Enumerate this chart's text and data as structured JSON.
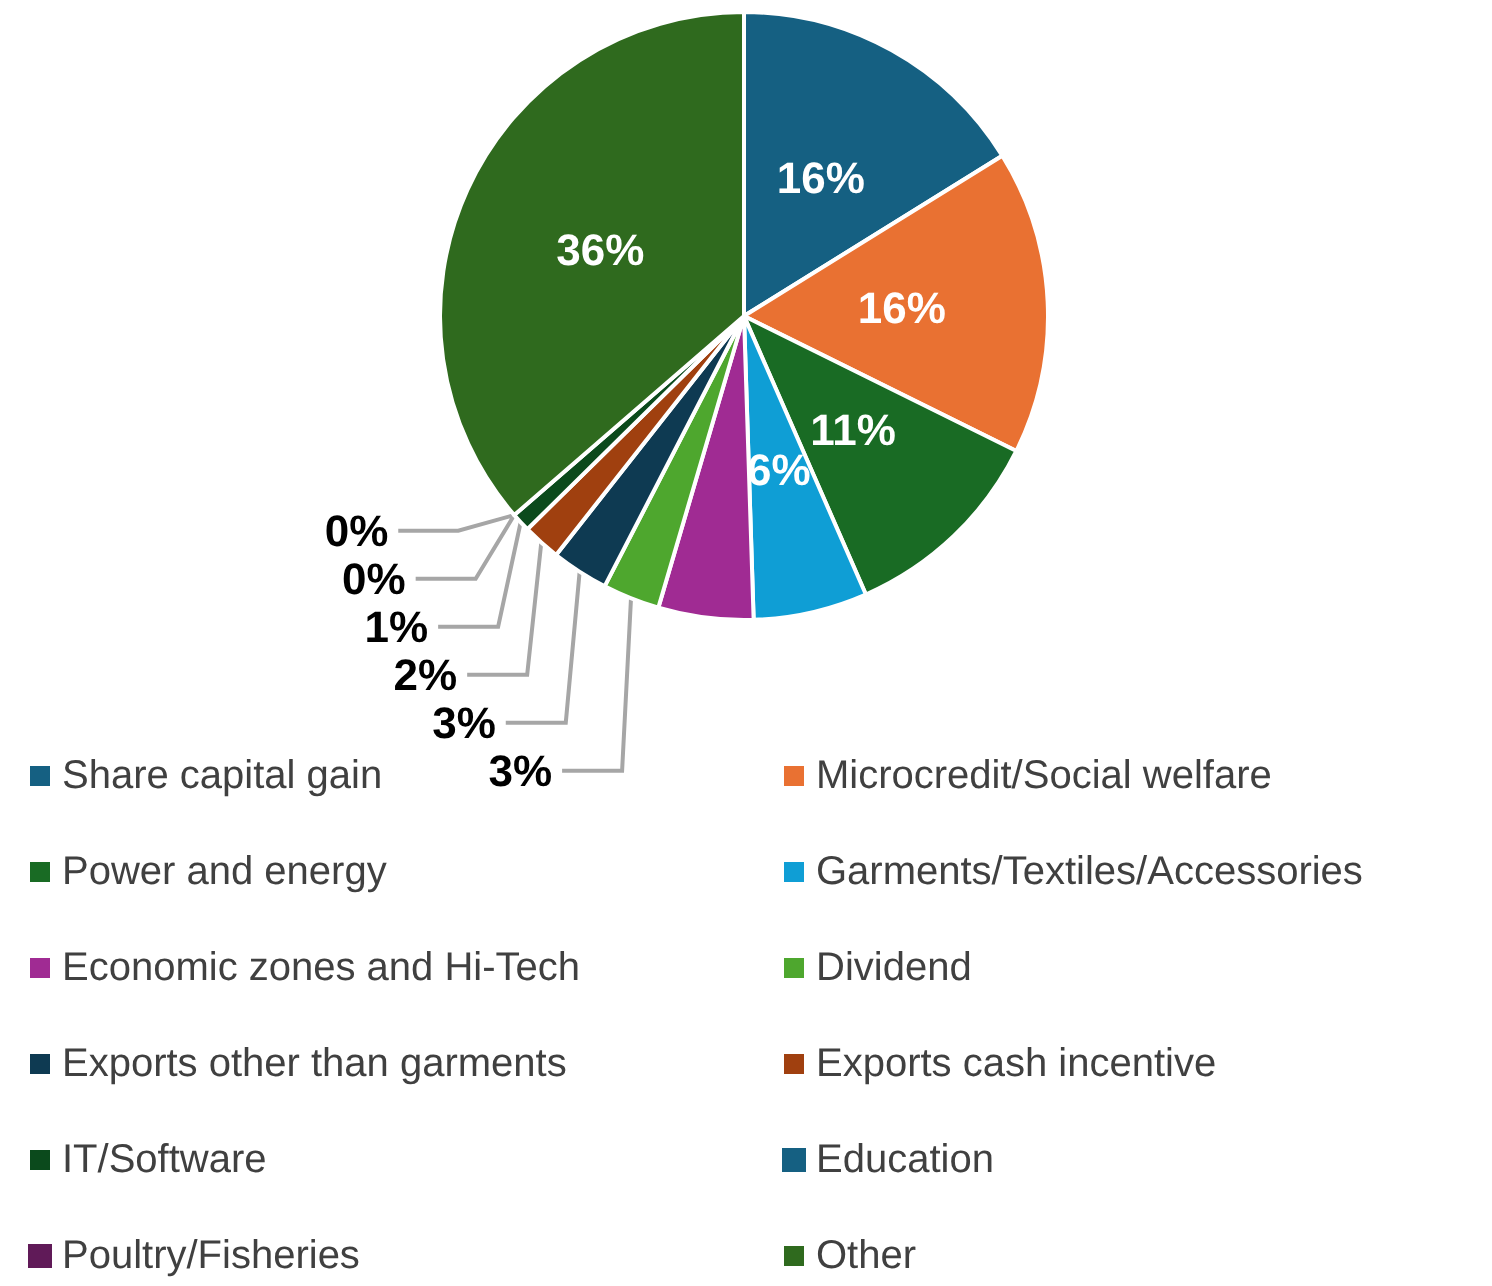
{
  "chart_data": {
    "type": "pie",
    "categories": [
      "Share capital gain",
      "Microcredit/Social welfare",
      "Power and energy",
      "Garments/Textiles/Accessories",
      "Economic zones and Hi-Tech",
      "Dividend",
      "Exports other than garments",
      "Exports cash incentive",
      "IT/Software",
      "Education",
      "Poultry/Fisheries",
      "Other"
    ],
    "values": [
      16,
      16,
      11,
      6,
      5,
      3,
      3,
      2,
      1,
      0,
      0,
      36
    ],
    "value_labels": [
      "16%",
      "16%",
      "11%",
      "6%",
      null,
      "3%",
      "3%",
      "2%",
      "1%",
      "0%",
      "0%",
      "36%"
    ],
    "colors": [
      "#156082",
      "#e97132",
      "#196b24",
      "#0f9ed5",
      "#a02b93",
      "#4ea72e",
      "#0e3a52",
      "#a0400f",
      "#0b4a1c",
      "#156082",
      "#601a58",
      "#2f6a1e"
    ],
    "legend": "bottom"
  }
}
